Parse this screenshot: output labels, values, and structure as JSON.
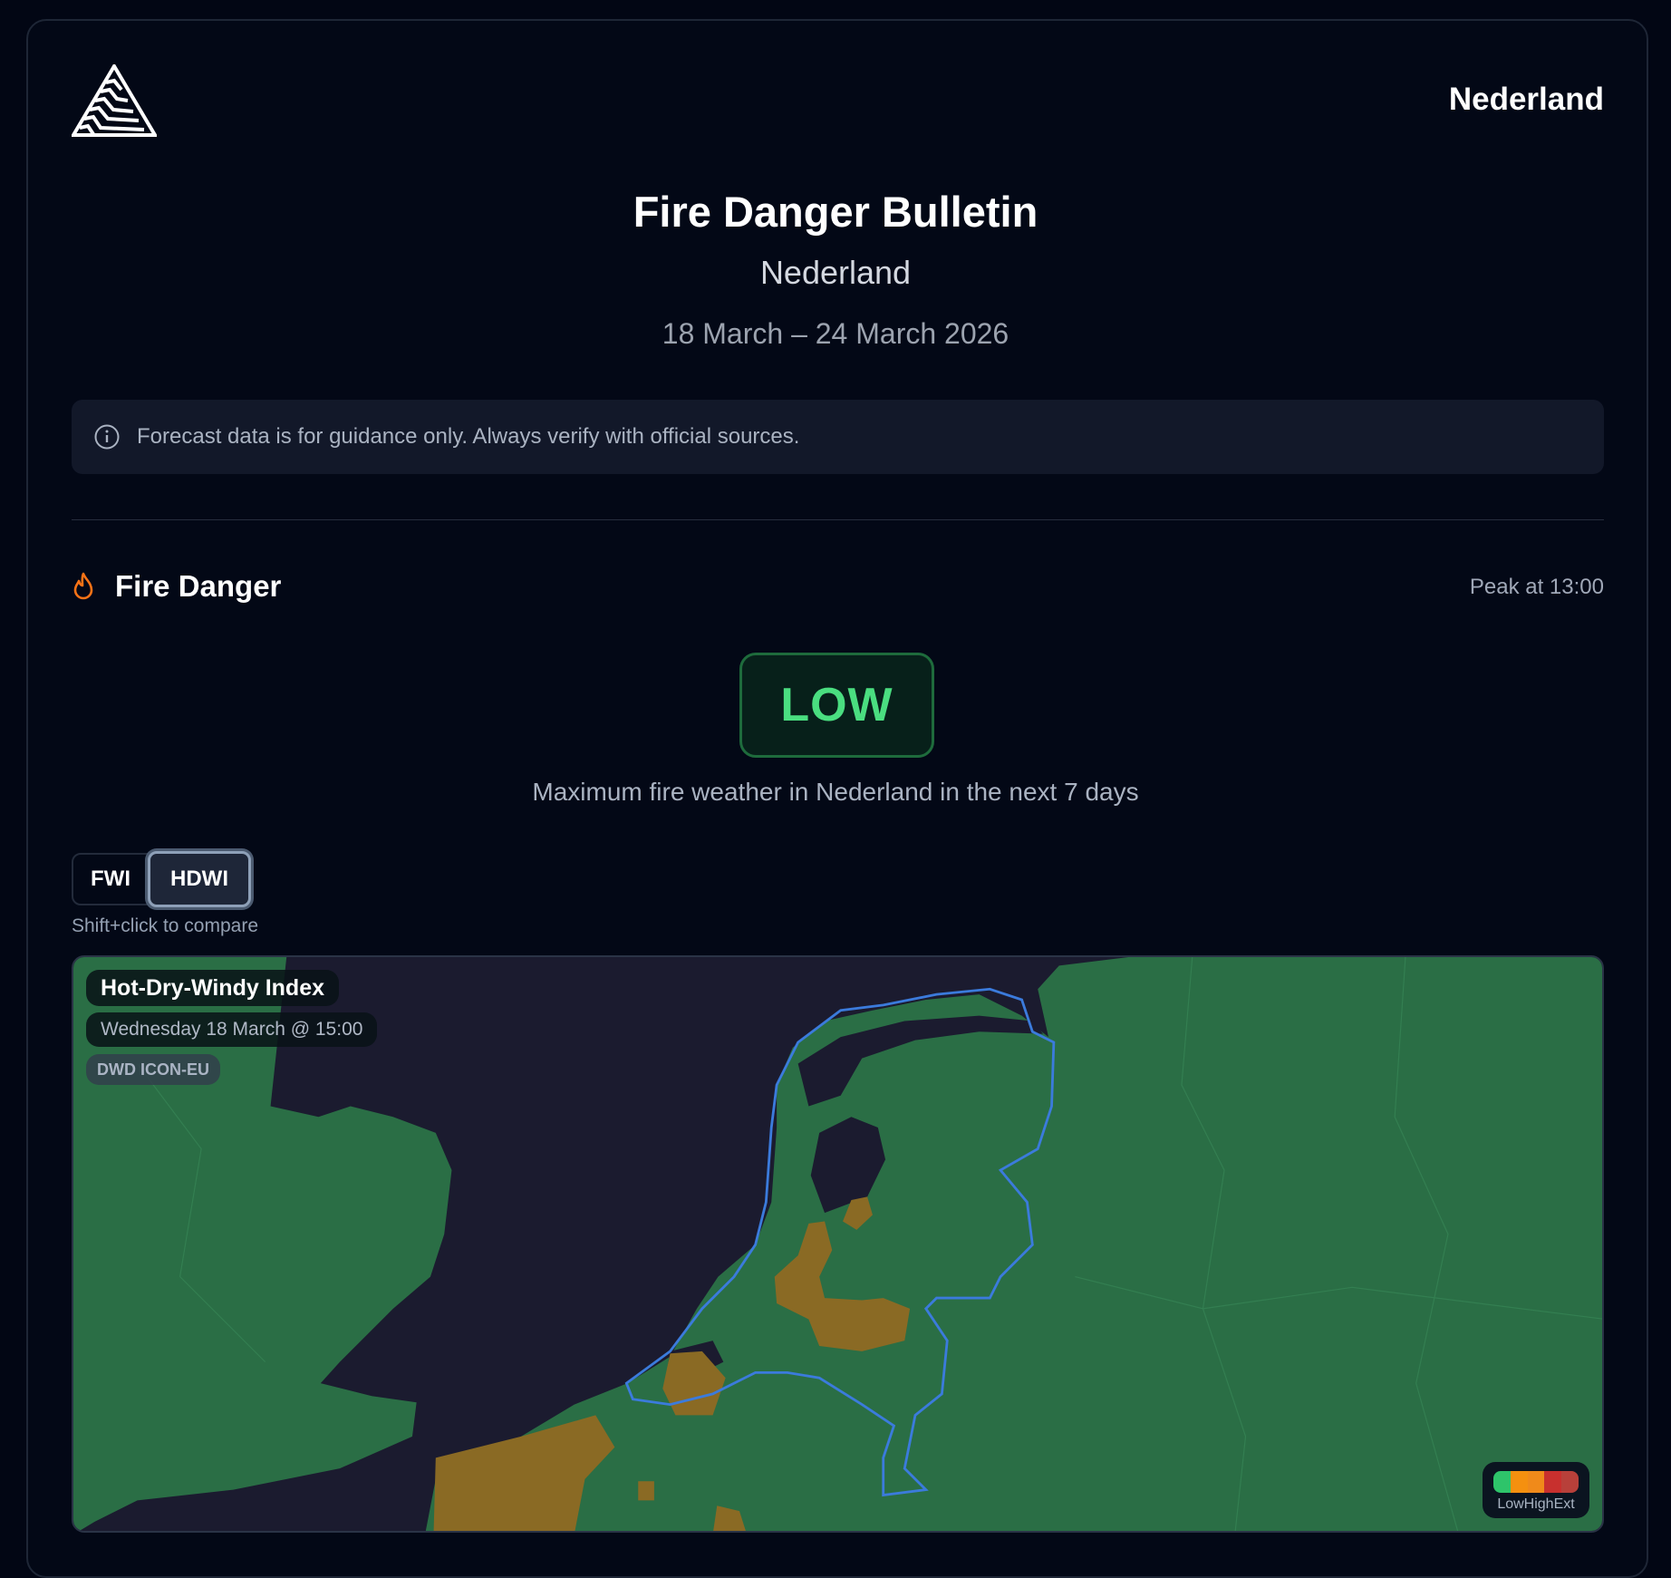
{
  "header": {
    "region": "Nederland",
    "logo": "striped-triangle-logo"
  },
  "bulletin": {
    "title": "Fire Danger Bulletin",
    "region": "Nederland",
    "dates": "18 March – 24 March 2026"
  },
  "notice": {
    "icon": "info-icon",
    "text": "Forecast data is for guidance only. Always verify with official sources."
  },
  "fire_danger": {
    "icon": "flame-icon",
    "title": "Fire Danger",
    "peak": "Peak at 13:00",
    "level": "LOW",
    "level_color": "#4ade80",
    "description": "Maximum fire weather in Nederland in the next 7 days"
  },
  "index_toggle": {
    "options": [
      "FWI",
      "HDWI"
    ],
    "selected": "HDWI",
    "hint": "Shift+click to compare"
  },
  "map": {
    "index_name": "Hot-Dry-Windy Index",
    "valid_time": "Wednesday 18 March @ 15:00",
    "model": "DWD ICON-EU",
    "colors": {
      "low": "#2a6e45",
      "elevated": "#8a6a24",
      "sea": "#1b1b2f",
      "border": "#3b7bdc"
    },
    "legend": {
      "labels": "LowHighExt",
      "colors": [
        "#2ec46a",
        "#f5900f",
        "#f08a1a",
        "#c8302e",
        "#b8403a"
      ]
    }
  }
}
